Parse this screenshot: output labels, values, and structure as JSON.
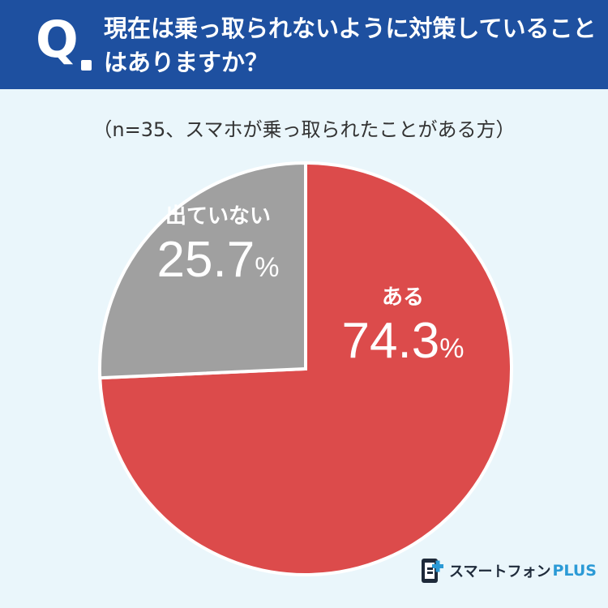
{
  "header": {
    "q_mark": "Q",
    "question": "現在は乗っ取られないように対策していることはありますか？"
  },
  "subtitle": "（n=35、スマホが乗っ取られたことがある方）",
  "chart_data": {
    "type": "pie",
    "start": "top (12 o'clock), clockwise",
    "slices": [
      {
        "label": "ある",
        "value": 74.3,
        "unit": "%",
        "color": "#dc4b4b"
      },
      {
        "label": "出ていない",
        "value": 25.7,
        "unit": "%",
        "color": "#a0a0a0"
      }
    ]
  },
  "brand": {
    "name": "スマートフォン",
    "plus": "PLUS",
    "icon": "smartphone-plus-logo-icon"
  },
  "colors": {
    "header_bg": "#1e50a0",
    "page_bg": "#eaf6fb"
  }
}
